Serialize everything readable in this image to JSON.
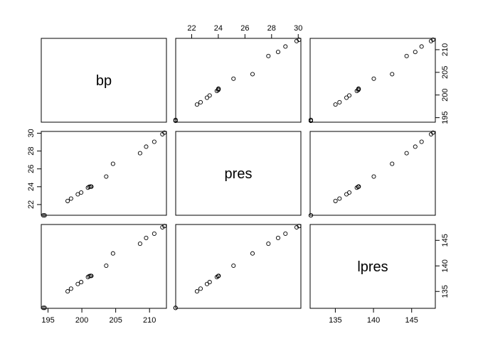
{
  "chart_data": {
    "type": "scatter",
    "kind": "pairs-matrix",
    "variables": [
      "bp",
      "pres",
      "lpres"
    ],
    "grid": false,
    "marker": "open-circle",
    "colors": {
      "background": "#ffffff",
      "ink": "#000000"
    },
    "axes": {
      "bp": {
        "range": [
          194.0,
          212.5
        ],
        "ticks": [
          195,
          200,
          205,
          210
        ],
        "tick_labels": [
          "195",
          "200",
          "205",
          "210"
        ]
      },
      "pres": {
        "range": [
          20.8,
          30.2
        ],
        "ticks": [
          22,
          24,
          26,
          28,
          30
        ],
        "tick_labels": [
          "22",
          "24",
          "26",
          "28",
          "30"
        ]
      },
      "lpres": {
        "range": [
          131.7,
          148.1
        ],
        "ticks": [
          135,
          140,
          145
        ],
        "tick_labels": [
          "135",
          "140",
          "145"
        ]
      }
    },
    "observations": [
      {
        "bp": 194.5,
        "pres": 20.79,
        "lpres": 131.79
      },
      {
        "bp": 194.3,
        "pres": 20.79,
        "lpres": 131.79
      },
      {
        "bp": 197.9,
        "pres": 22.4,
        "lpres": 135.02
      },
      {
        "bp": 198.4,
        "pres": 22.67,
        "lpres": 135.55
      },
      {
        "bp": 199.4,
        "pres": 23.15,
        "lpres": 136.46
      },
      {
        "bp": 199.9,
        "pres": 23.35,
        "lpres": 136.83
      },
      {
        "bp": 200.9,
        "pres": 23.89,
        "lpres": 137.82
      },
      {
        "bp": 201.1,
        "pres": 23.99,
        "lpres": 138.0
      },
      {
        "bp": 201.3,
        "pres": 24.02,
        "lpres": 138.06
      },
      {
        "bp": 201.4,
        "pres": 24.01,
        "lpres": 138.04
      },
      {
        "bp": 203.6,
        "pres": 25.14,
        "lpres": 140.04
      },
      {
        "bp": 204.6,
        "pres": 26.57,
        "lpres": 142.44
      },
      {
        "bp": 208.6,
        "pres": 27.76,
        "lpres": 144.34
      },
      {
        "bp": 209.5,
        "pres": 28.49,
        "lpres": 145.47
      },
      {
        "bp": 210.7,
        "pres": 29.04,
        "lpres": 146.3
      },
      {
        "bp": 211.9,
        "pres": 29.88,
        "lpres": 147.54
      },
      {
        "bp": 212.2,
        "pres": 30.06,
        "lpres": 147.8
      }
    ]
  }
}
